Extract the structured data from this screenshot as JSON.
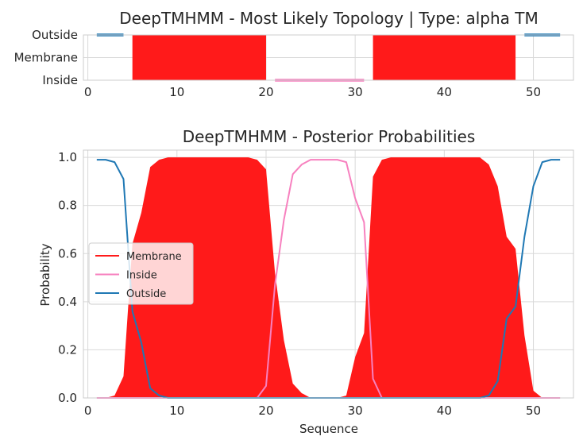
{
  "chart_data": [
    {
      "type": "topology",
      "title": "DeepTMHMM - Most Likely Topology | Type: alpha TM",
      "xlim": [
        -0.5,
        54.5
      ],
      "xticks": [
        0,
        10,
        20,
        30,
        40,
        50
      ],
      "ycategories": [
        "Outside",
        "Membrane",
        "Inside"
      ],
      "colors": {
        "Membrane": "#ff1a1a",
        "Inside": "#f781bf",
        "Outside": "#1f78b4"
      },
      "segments": [
        {
          "label": "Outside",
          "start": 1,
          "end": 4
        },
        {
          "label": "Membrane",
          "start": 5,
          "end": 20
        },
        {
          "label": "Inside",
          "start": 21,
          "end": 31
        },
        {
          "label": "Membrane",
          "start": 32,
          "end": 48
        },
        {
          "label": "Outside",
          "start": 49,
          "end": 53
        }
      ]
    },
    {
      "type": "area",
      "title": "DeepTMHMM - Posterior Probabilities",
      "xlabel": "Sequence",
      "ylabel": "Probability",
      "xlim": [
        -0.5,
        54.5
      ],
      "ylim": [
        0,
        1.03
      ],
      "xticks": [
        0,
        10,
        20,
        30,
        40,
        50
      ],
      "yticks": [
        0.0,
        0.2,
        0.4,
        0.6,
        0.8,
        1.0
      ],
      "legend": "center-left",
      "x": [
        1,
        2,
        3,
        4,
        5,
        6,
        7,
        8,
        9,
        10,
        11,
        12,
        13,
        14,
        15,
        16,
        17,
        18,
        19,
        20,
        21,
        22,
        23,
        24,
        25,
        26,
        27,
        28,
        29,
        30,
        31,
        32,
        33,
        34,
        35,
        36,
        37,
        38,
        39,
        40,
        41,
        42,
        43,
        44,
        45,
        46,
        47,
        48,
        49,
        50,
        51,
        52,
        53
      ],
      "series": [
        {
          "name": "Membrane",
          "color": "#ff1a1a",
          "fill": true,
          "values": [
            0,
            0,
            0.01,
            0.09,
            0.64,
            0.77,
            0.96,
            0.99,
            1,
            1,
            1,
            1,
            1,
            1,
            1,
            1,
            1,
            1,
            0.99,
            0.95,
            0.52,
            0.24,
            0.06,
            0.02,
            0,
            0,
            0,
            0,
            0.01,
            0.17,
            0.27,
            0.92,
            0.99,
            1,
            1,
            1,
            1,
            1,
            1,
            1,
            1,
            1,
            1,
            1,
            0.97,
            0.88,
            0.67,
            0.62,
            0.26,
            0.03,
            0,
            0,
            0
          ]
        },
        {
          "name": "Inside",
          "color": "#f781bf",
          "fill": false,
          "values": [
            0,
            0,
            0,
            0,
            0,
            0,
            0,
            0,
            0,
            0,
            0,
            0,
            0,
            0,
            0,
            0,
            0,
            0,
            0,
            0.05,
            0.47,
            0.74,
            0.93,
            0.97,
            0.99,
            0.99,
            0.99,
            0.99,
            0.98,
            0.83,
            0.73,
            0.08,
            0,
            0,
            0,
            0,
            0,
            0,
            0,
            0,
            0,
            0,
            0,
            0,
            0,
            0,
            0,
            0,
            0,
            0,
            0,
            0,
            0
          ]
        },
        {
          "name": "Outside",
          "color": "#1f78b4",
          "fill": false,
          "values": [
            0.99,
            0.99,
            0.98,
            0.91,
            0.36,
            0.23,
            0.04,
            0.01,
            0,
            0,
            0,
            0,
            0,
            0,
            0,
            0,
            0,
            0,
            0,
            0,
            0,
            0,
            0,
            0,
            0,
            0,
            0,
            0,
            0,
            0,
            0,
            0,
            0,
            0,
            0,
            0,
            0,
            0,
            0,
            0,
            0,
            0,
            0,
            0,
            0.01,
            0.07,
            0.33,
            0.38,
            0.67,
            0.88,
            0.98,
            0.99,
            0.99
          ]
        }
      ]
    }
  ]
}
